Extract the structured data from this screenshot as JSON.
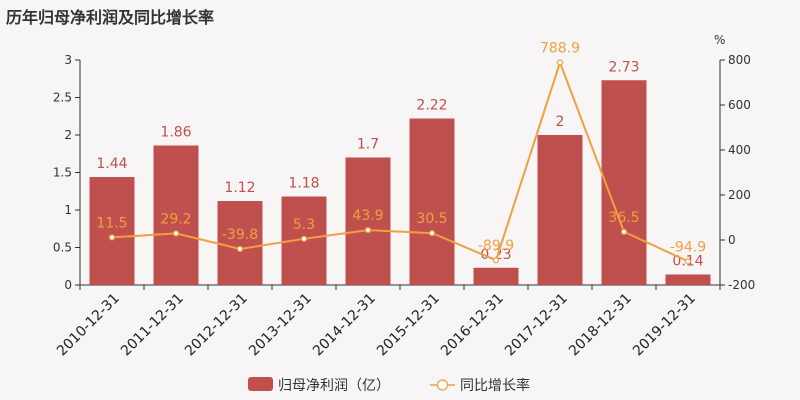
{
  "title": "历年归母净利润及同比增长率",
  "chart_data": {
    "type": "bar",
    "categories": [
      "2010-12-31",
      "2011-12-31",
      "2012-12-31",
      "2013-12-31",
      "2014-12-31",
      "2015-12-31",
      "2016-12-31",
      "2017-12-31",
      "2018-12-31",
      "2019-12-31"
    ],
    "series": [
      {
        "name": "归母净利润（亿）",
        "type": "bar",
        "axis": "left",
        "color": "#c0504d",
        "values": [
          1.44,
          1.86,
          1.12,
          1.18,
          1.7,
          2.22,
          0.23,
          2,
          2.73,
          0.14
        ],
        "labels": [
          "1.44",
          "1.86",
          "1.12",
          "1.18",
          "1.7",
          "2.22",
          "0.23",
          "2",
          "2.73",
          "0.14"
        ]
      },
      {
        "name": "同比增长率",
        "type": "line",
        "axis": "right",
        "color": "#f0a040",
        "values": [
          11.5,
          29.2,
          -39.8,
          5.3,
          43.9,
          30.5,
          -89.9,
          788.9,
          36.5,
          -94.9
        ],
        "labels": [
          "11.5",
          "29.2",
          "-39.8",
          "5.3",
          "43.9",
          "30.5",
          "-89.9",
          "788.9",
          "36.5",
          "-94.9"
        ]
      }
    ],
    "y_left": {
      "ylim": [
        0,
        3
      ],
      "ticks": [
        "0",
        "0.5",
        "1",
        "1.5",
        "2",
        "2.5",
        "3"
      ]
    },
    "y_right": {
      "label": "%",
      "ylim": [
        -200,
        800
      ],
      "ticks": [
        "-200",
        "0",
        "200",
        "400",
        "600",
        "800"
      ]
    },
    "grid": false,
    "legend": "bottom"
  }
}
